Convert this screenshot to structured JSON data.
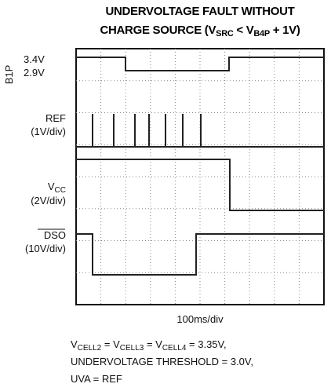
{
  "header": {
    "title_line1": "UNDERVOLTAGE FAULT WITHOUT",
    "title_line2": [
      "CHARGE SOURCE (V",
      "SRC",
      " < V",
      "B4P",
      " + 1V)"
    ]
  },
  "traces": [
    {
      "name": "B1P",
      "levels": [
        "3.4V",
        "2.9V"
      ]
    },
    {
      "name": "REF",
      "scale": "(1V/div)"
    },
    {
      "name": [
        "V",
        "CC"
      ],
      "scale": "(2V/div)"
    },
    {
      "name": "DSO",
      "scale": "(10V/div)"
    }
  ],
  "time_scale": "100ms/div",
  "notes": [
    [
      "V",
      "CELL2",
      " = V",
      "CELL3",
      " = V",
      "CELL4",
      " = 3.35V,"
    ],
    "UNDERVOLTAGE THRESHOLD = 3.0V,",
    "UVA = REF"
  ]
}
